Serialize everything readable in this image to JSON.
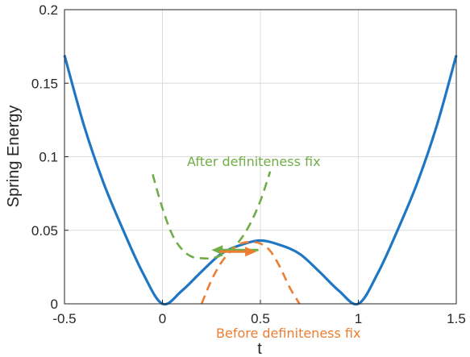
{
  "chart_data": {
    "type": "line",
    "title": "",
    "xlabel": "t",
    "ylabel": "Spring Energy",
    "xlim": [
      -0.5,
      1.5
    ],
    "ylim": [
      0,
      0.2
    ],
    "xticks": [
      -0.5,
      0,
      0.5,
      1,
      1.5
    ],
    "xtick_labels": [
      "-0.5",
      "0",
      "0.5",
      "1",
      "1.5"
    ],
    "yticks": [
      0,
      0.05,
      0.1,
      0.15,
      0.2
    ],
    "ytick_labels": [
      "0",
      "0.05",
      "0.1",
      "0.15",
      "0.2"
    ],
    "grid": true,
    "series": [
      {
        "color": "#1f77c4",
        "style": "solid",
        "points": [
          [
            -0.5,
            0.169
          ],
          [
            -0.4,
            0.121
          ],
          [
            -0.3,
            0.082
          ],
          [
            -0.2,
            0.05
          ],
          [
            -0.1,
            0.021
          ],
          [
            0,
            0
          ],
          [
            0.1,
            0.009
          ],
          [
            0.2,
            0.022
          ],
          [
            0.3,
            0.034
          ],
          [
            0.4,
            0.04
          ],
          [
            0.5,
            0.043
          ],
          [
            0.6,
            0.04
          ],
          [
            0.7,
            0.034
          ],
          [
            0.8,
            0.022
          ],
          [
            0.9,
            0.009
          ],
          [
            1.0,
            0
          ],
          [
            1.1,
            0.021
          ],
          [
            1.2,
            0.05
          ],
          [
            1.3,
            0.082
          ],
          [
            1.4,
            0.121
          ],
          [
            1.5,
            0.169
          ]
        ]
      },
      {
        "color": "#70ad47",
        "style": "dashed",
        "points": [
          [
            -0.05,
            0.088
          ],
          [
            0.0,
            0.065
          ],
          [
            0.05,
            0.047
          ],
          [
            0.1,
            0.037
          ],
          [
            0.15,
            0.032
          ],
          [
            0.2,
            0.031
          ],
          [
            0.25,
            0.031
          ],
          [
            0.3,
            0.033
          ],
          [
            0.35,
            0.037
          ],
          [
            0.4,
            0.044
          ],
          [
            0.45,
            0.055
          ],
          [
            0.5,
            0.07
          ],
          [
            0.55,
            0.09
          ]
        ]
      },
      {
        "color": "#ed7d31",
        "style": "dashed",
        "points": [
          [
            0.2,
            0.0
          ],
          [
            0.25,
            0.016
          ],
          [
            0.3,
            0.028
          ],
          [
            0.35,
            0.036
          ],
          [
            0.4,
            0.041
          ],
          [
            0.45,
            0.042
          ],
          [
            0.5,
            0.041
          ],
          [
            0.55,
            0.036
          ],
          [
            0.6,
            0.025
          ],
          [
            0.65,
            0.011
          ],
          [
            0.7,
            0.0
          ]
        ]
      }
    ],
    "annotations": [
      {
        "text": "After definiteness fix",
        "color": "#70ad47"
      },
      {
        "text": "Before definiteness fix",
        "color": "#ed7d31"
      }
    ],
    "arrows": [
      {
        "from": [
          0.49,
          0.036
        ],
        "to": [
          0.25,
          0.036
        ],
        "color": "#70ad47"
      },
      {
        "from": [
          0.29,
          0.036
        ],
        "to": [
          0.48,
          0.036
        ],
        "color": "#ed7d31"
      }
    ]
  }
}
